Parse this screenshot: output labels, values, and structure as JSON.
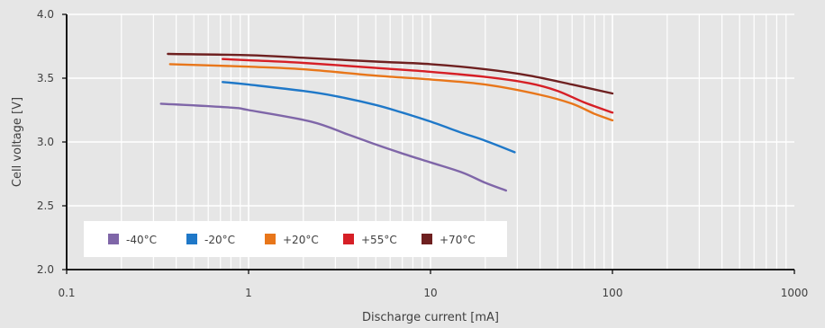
{
  "chart_data": {
    "type": "line",
    "title": "",
    "xlabel": "Discharge current [mA]",
    "ylabel": "Cell voltage [V]",
    "x_scale": "log",
    "xlim": [
      0.1,
      1000
    ],
    "ylim": [
      2.0,
      4.0
    ],
    "x_ticks": [
      "0.1",
      "1",
      "10",
      "100",
      "1000"
    ],
    "y_ticks": [
      "2.0",
      "2.5",
      "3.0",
      "3.5",
      "4.0"
    ],
    "grid": true,
    "legend_position": "bottom-left inside",
    "series": [
      {
        "name": "-40°C",
        "color": "#7f66a8",
        "points": [
          [
            0.33,
            3.3
          ],
          [
            0.8,
            3.27
          ],
          [
            1.0,
            3.25
          ],
          [
            2.2,
            3.16
          ],
          [
            3.5,
            3.06
          ],
          [
            5.0,
            2.98
          ],
          [
            7.0,
            2.91
          ],
          [
            10.0,
            2.84
          ],
          [
            15.0,
            2.76
          ],
          [
            20.0,
            2.68
          ],
          [
            26.0,
            2.62
          ]
        ]
      },
      {
        "name": "-20°C",
        "color": "#1f78c8",
        "points": [
          [
            0.72,
            3.47
          ],
          [
            1.0,
            3.45
          ],
          [
            2.0,
            3.4
          ],
          [
            3.0,
            3.36
          ],
          [
            5.0,
            3.29
          ],
          [
            7.0,
            3.23
          ],
          [
            10.0,
            3.16
          ],
          [
            15.0,
            3.07
          ],
          [
            20.0,
            3.01
          ],
          [
            29.0,
            2.92
          ]
        ]
      },
      {
        "name": "+20°C",
        "color": "#e8761a",
        "points": [
          [
            0.37,
            3.61
          ],
          [
            1.0,
            3.59
          ],
          [
            2.0,
            3.57
          ],
          [
            5.0,
            3.52
          ],
          [
            10.0,
            3.49
          ],
          [
            20.0,
            3.45
          ],
          [
            40.0,
            3.37
          ],
          [
            60.0,
            3.3
          ],
          [
            80.0,
            3.22
          ],
          [
            100.0,
            3.17
          ]
        ]
      },
      {
        "name": "+55°C",
        "color": "#d61f26",
        "points": [
          [
            0.72,
            3.65
          ],
          [
            1.0,
            3.64
          ],
          [
            2.0,
            3.62
          ],
          [
            5.0,
            3.58
          ],
          [
            10.0,
            3.55
          ],
          [
            20.0,
            3.51
          ],
          [
            35.0,
            3.46
          ],
          [
            50.0,
            3.4
          ],
          [
            70.0,
            3.31
          ],
          [
            100.0,
            3.23
          ]
        ]
      },
      {
        "name": "+70°C",
        "color": "#6e2020",
        "points": [
          [
            0.36,
            3.69
          ],
          [
            1.0,
            3.68
          ],
          [
            2.0,
            3.66
          ],
          [
            5.0,
            3.63
          ],
          [
            10.0,
            3.61
          ],
          [
            20.0,
            3.57
          ],
          [
            35.0,
            3.52
          ],
          [
            60.0,
            3.45
          ],
          [
            100.0,
            3.38
          ]
        ]
      }
    ]
  }
}
